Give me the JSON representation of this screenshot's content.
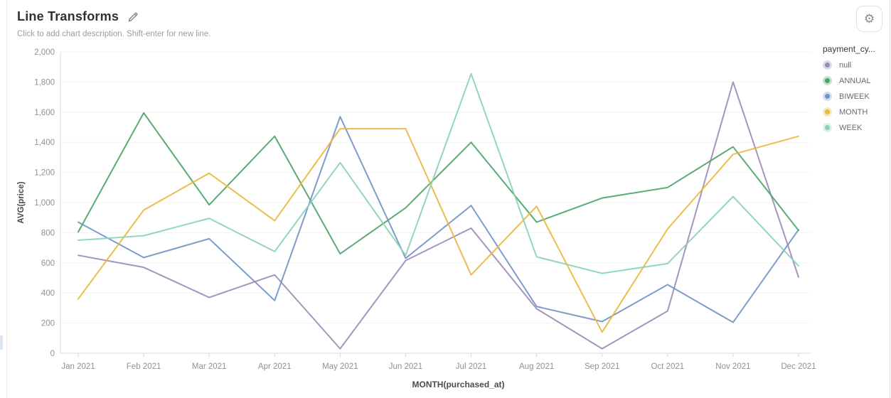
{
  "header": {
    "title": "Line Transforms",
    "subtitle": "Click to add chart description. Shift-enter for new line."
  },
  "legend": {
    "title": "payment_cy..."
  },
  "chart_data": {
    "type": "line",
    "title": "Line Transforms",
    "xlabel": "MONTH(purchased_at)",
    "ylabel": "AVG(price)",
    "ylim": [
      0,
      2000
    ],
    "ytick_step": 200,
    "grid": true,
    "legend_position": "right",
    "categories": [
      "Jan 2021",
      "Feb 2021",
      "Mar 2021",
      "Apr 2021",
      "May 2021",
      "Jun 2021",
      "Jul 2021",
      "Aug 2021",
      "Sep 2021",
      "Oct 2021",
      "Nov 2021",
      "Dec 2021"
    ],
    "series": [
      {
        "name": "null",
        "color": "#9d8bb9",
        "values": [
          650,
          570,
          370,
          520,
          30,
          615,
          830,
          295,
          30,
          280,
          1800,
          505
        ]
      },
      {
        "name": "ANNUAL",
        "color": "#4ba567",
        "values": [
          805,
          1595,
          985,
          1440,
          660,
          965,
          1400,
          870,
          1030,
          1100,
          1370,
          815
        ]
      },
      {
        "name": "BIWEEK",
        "color": "#7394c7",
        "values": [
          870,
          635,
          760,
          350,
          1570,
          630,
          980,
          310,
          210,
          455,
          205,
          820
        ]
      },
      {
        "name": "MONTH",
        "color": "#e9b93d",
        "values": [
          360,
          950,
          1195,
          880,
          1490,
          1490,
          520,
          975,
          140,
          825,
          1320,
          1440
        ]
      },
      {
        "name": "WEEK",
        "color": "#8ad2b5",
        "values": [
          750,
          780,
          895,
          675,
          1265,
          650,
          1855,
          640,
          530,
          595,
          1040,
          580
        ]
      }
    ]
  }
}
